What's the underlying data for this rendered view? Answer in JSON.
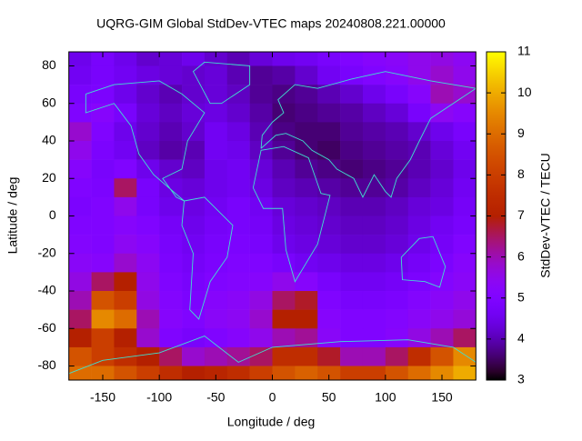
{
  "chart_data": {
    "type": "heatmap",
    "title": "UQRG-GIM Global StdDev-VTEC maps 20240808.221.00000",
    "x_label": "Longitude / deg",
    "y_label": "Latitude / deg",
    "colorbar_label": "StdDev-VTEC / TECU",
    "colormap": "gnuplot",
    "x": [
      -170,
      -150,
      -130,
      -110,
      -90,
      -70,
      -50,
      -30,
      -10,
      10,
      30,
      50,
      70,
      90,
      110,
      130,
      150,
      170
    ],
    "y": [
      85,
      75,
      65,
      55,
      45,
      35,
      25,
      15,
      5,
      -5,
      -15,
      -25,
      -35,
      -45,
      -55,
      -65,
      -75,
      -85
    ],
    "z": [
      [
        4.5,
        4.8,
        4.5,
        4.2,
        4.3,
        4.5,
        4.2,
        4.0,
        4.3,
        4.5,
        4.6,
        4.8,
        5.0,
        5.2,
        5.3,
        5.5,
        5.6,
        5.4
      ],
      [
        4.6,
        4.8,
        4.6,
        4.4,
        4.3,
        4.2,
        4.3,
        4.0,
        3.8,
        3.9,
        4.2,
        4.6,
        4.8,
        5.0,
        5.2,
        5.5,
        5.8,
        5.5
      ],
      [
        4.8,
        4.9,
        4.5,
        4.2,
        4.0,
        4.2,
        4.3,
        4.1,
        3.8,
        3.7,
        3.8,
        4.0,
        4.2,
        4.5,
        4.8,
        5.2,
        6.0,
        5.8
      ],
      [
        5.0,
        5.2,
        4.8,
        4.3,
        4.1,
        4.3,
        4.4,
        4.2,
        3.9,
        3.6,
        3.7,
        3.8,
        3.9,
        4.1,
        4.3,
        4.8,
        5.4,
        5.2
      ],
      [
        5.8,
        5.0,
        4.5,
        4.2,
        4.0,
        4.2,
        4.6,
        4.4,
        4.0,
        3.7,
        3.6,
        3.6,
        3.8,
        3.9,
        4.0,
        4.2,
        4.5,
        4.8
      ],
      [
        5.5,
        4.9,
        4.6,
        4.1,
        3.9,
        4.0,
        4.6,
        4.5,
        4.1,
        3.8,
        3.6,
        3.5,
        3.7,
        3.8,
        3.9,
        4.0,
        4.3,
        4.6
      ],
      [
        5.2,
        4.8,
        5.0,
        4.5,
        4.2,
        4.1,
        4.5,
        4.6,
        4.3,
        4.0,
        3.8,
        3.7,
        3.6,
        3.7,
        3.8,
        4.0,
        4.2,
        4.5
      ],
      [
        5.0,
        4.9,
        6.5,
        4.8,
        4.4,
        4.3,
        4.5,
        4.6,
        4.4,
        4.1,
        4.0,
        3.9,
        3.8,
        3.8,
        3.9,
        4.1,
        4.3,
        4.6
      ],
      [
        4.9,
        5.0,
        5.5,
        4.8,
        4.5,
        4.4,
        4.6,
        4.8,
        4.6,
        4.3,
        4.2,
        4.1,
        4.0,
        4.0,
        4.1,
        4.3,
        4.4,
        4.7
      ],
      [
        5.0,
        5.0,
        5.2,
        5.0,
        4.7,
        4.5,
        4.7,
        4.8,
        4.7,
        4.4,
        4.3,
        4.2,
        4.1,
        4.1,
        4.2,
        4.4,
        4.6,
        4.8
      ],
      [
        5.1,
        5.0,
        5.4,
        5.2,
        4.8,
        4.6,
        4.8,
        4.9,
        4.8,
        4.5,
        4.4,
        4.3,
        4.2,
        4.2,
        4.3,
        4.5,
        4.7,
        5.0
      ],
      [
        5.3,
        5.2,
        5.8,
        5.4,
        4.9,
        4.7,
        4.9,
        5.0,
        5.0,
        4.8,
        4.6,
        4.5,
        4.4,
        4.4,
        4.5,
        4.7,
        4.9,
        5.2
      ],
      [
        5.6,
        6.5,
        7.0,
        5.5,
        5.0,
        4.8,
        5.0,
        5.1,
        5.2,
        5.5,
        5.2,
        4.8,
        4.6,
        4.6,
        4.7,
        4.9,
        5.1,
        5.3
      ],
      [
        6.0,
        8.5,
        8.0,
        5.6,
        5.1,
        4.9,
        5.2,
        5.3,
        5.6,
        6.5,
        6.8,
        5.0,
        4.8,
        4.8,
        4.9,
        5.1,
        5.3,
        5.5
      ],
      [
        6.5,
        9.5,
        9.0,
        6.0,
        5.2,
        5.0,
        5.3,
        5.4,
        5.8,
        7.0,
        7.0,
        5.2,
        5.0,
        5.0,
        5.1,
        5.3,
        5.5,
        5.7
      ],
      [
        7.0,
        8.0,
        7.0,
        5.8,
        5.0,
        4.8,
        5.0,
        5.2,
        5.5,
        6.0,
        6.2,
        5.3,
        5.0,
        5.0,
        5.2,
        5.6,
        6.0,
        6.5
      ],
      [
        8.5,
        8.0,
        7.5,
        7.0,
        6.5,
        5.8,
        6.0,
        6.2,
        6.5,
        7.5,
        7.5,
        6.8,
        6.0,
        6.0,
        6.5,
        7.5,
        8.5,
        9.5
      ],
      [
        9.0,
        9.0,
        8.5,
        8.0,
        7.5,
        7.0,
        7.2,
        7.5,
        8.0,
        8.5,
        8.8,
        8.5,
        8.0,
        8.0,
        8.5,
        9.0,
        9.5,
        10.0
      ]
    ],
    "xlim": [
      -180,
      180
    ],
    "ylim": [
      -87.5,
      87.5
    ],
    "clim": [
      3,
      11
    ],
    "xticks": [
      -150,
      -100,
      -50,
      0,
      50,
      100,
      150
    ],
    "yticks": [
      -80,
      -60,
      -40,
      -20,
      0,
      20,
      40,
      60,
      80
    ],
    "cticks": [
      3,
      4,
      5,
      6,
      7,
      8,
      9,
      10,
      11
    ]
  }
}
